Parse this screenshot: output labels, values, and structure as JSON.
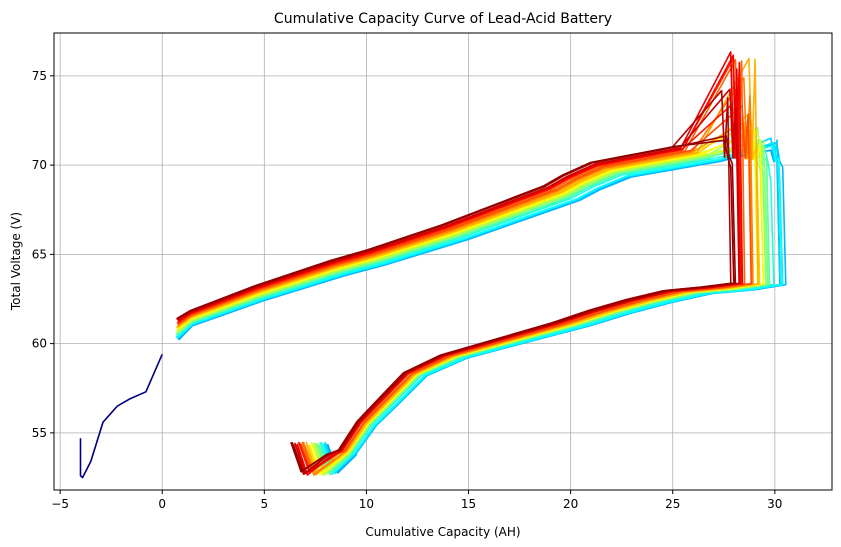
{
  "chart_data": {
    "type": "line",
    "title": "Cumulative Capacity Curve of Lead-Acid Battery",
    "xlabel": "Cumulative Capacity (AH)",
    "ylabel": "Total Voltage (V)",
    "xlim": [
      -5.3,
      32.8
    ],
    "ylim": [
      51.8,
      77.4
    ],
    "xticks": [
      -5,
      0,
      5,
      10,
      15,
      20,
      25,
      30
    ],
    "yticks": [
      55,
      60,
      65,
      70,
      75
    ],
    "grid": true,
    "legend": "none",
    "colormap": "jet",
    "colors": {
      "first_cycle": "#00007f",
      "grid": "#b0b0b0",
      "spine": "#000000",
      "background": "#ffffff"
    },
    "initial_discharge": {
      "x": [
        0.0,
        -0.8,
        -1.6,
        -2.2,
        -2.9,
        -3.5,
        -3.9,
        -4.0,
        -4.0
      ],
      "y": [
        59.4,
        57.3,
        56.9,
        56.5,
        55.6,
        53.4,
        52.5,
        52.6,
        54.7
      ]
    },
    "cycle_template": {
      "charge_upper": {
        "x": [
          0.7,
          1.5,
          3.0,
          5.0,
          7.0,
          9.0,
          11.0,
          13.0,
          15.0,
          17.0,
          19.0,
          20.5,
          21.5,
          23.0,
          25.0,
          27.5
        ],
        "y": [
          60.2,
          61.0,
          61.6,
          62.4,
          63.1,
          63.8,
          64.4,
          65.1,
          65.8,
          66.6,
          67.4,
          68.0,
          68.6,
          69.3,
          69.7,
          70.2
        ]
      },
      "discharge_lower": {
        "x": [
          9.5,
          10.5,
          11.5,
          13.0,
          15.0,
          17.0,
          19.0,
          21.0,
          23.0,
          25.0,
          27.0,
          29.0
        ],
        "y": [
          53.8,
          55.4,
          56.5,
          58.2,
          59.2,
          59.8,
          60.4,
          61.0,
          61.7,
          62.3,
          62.8,
          63.0
        ]
      },
      "cycle_count": 30
    }
  }
}
